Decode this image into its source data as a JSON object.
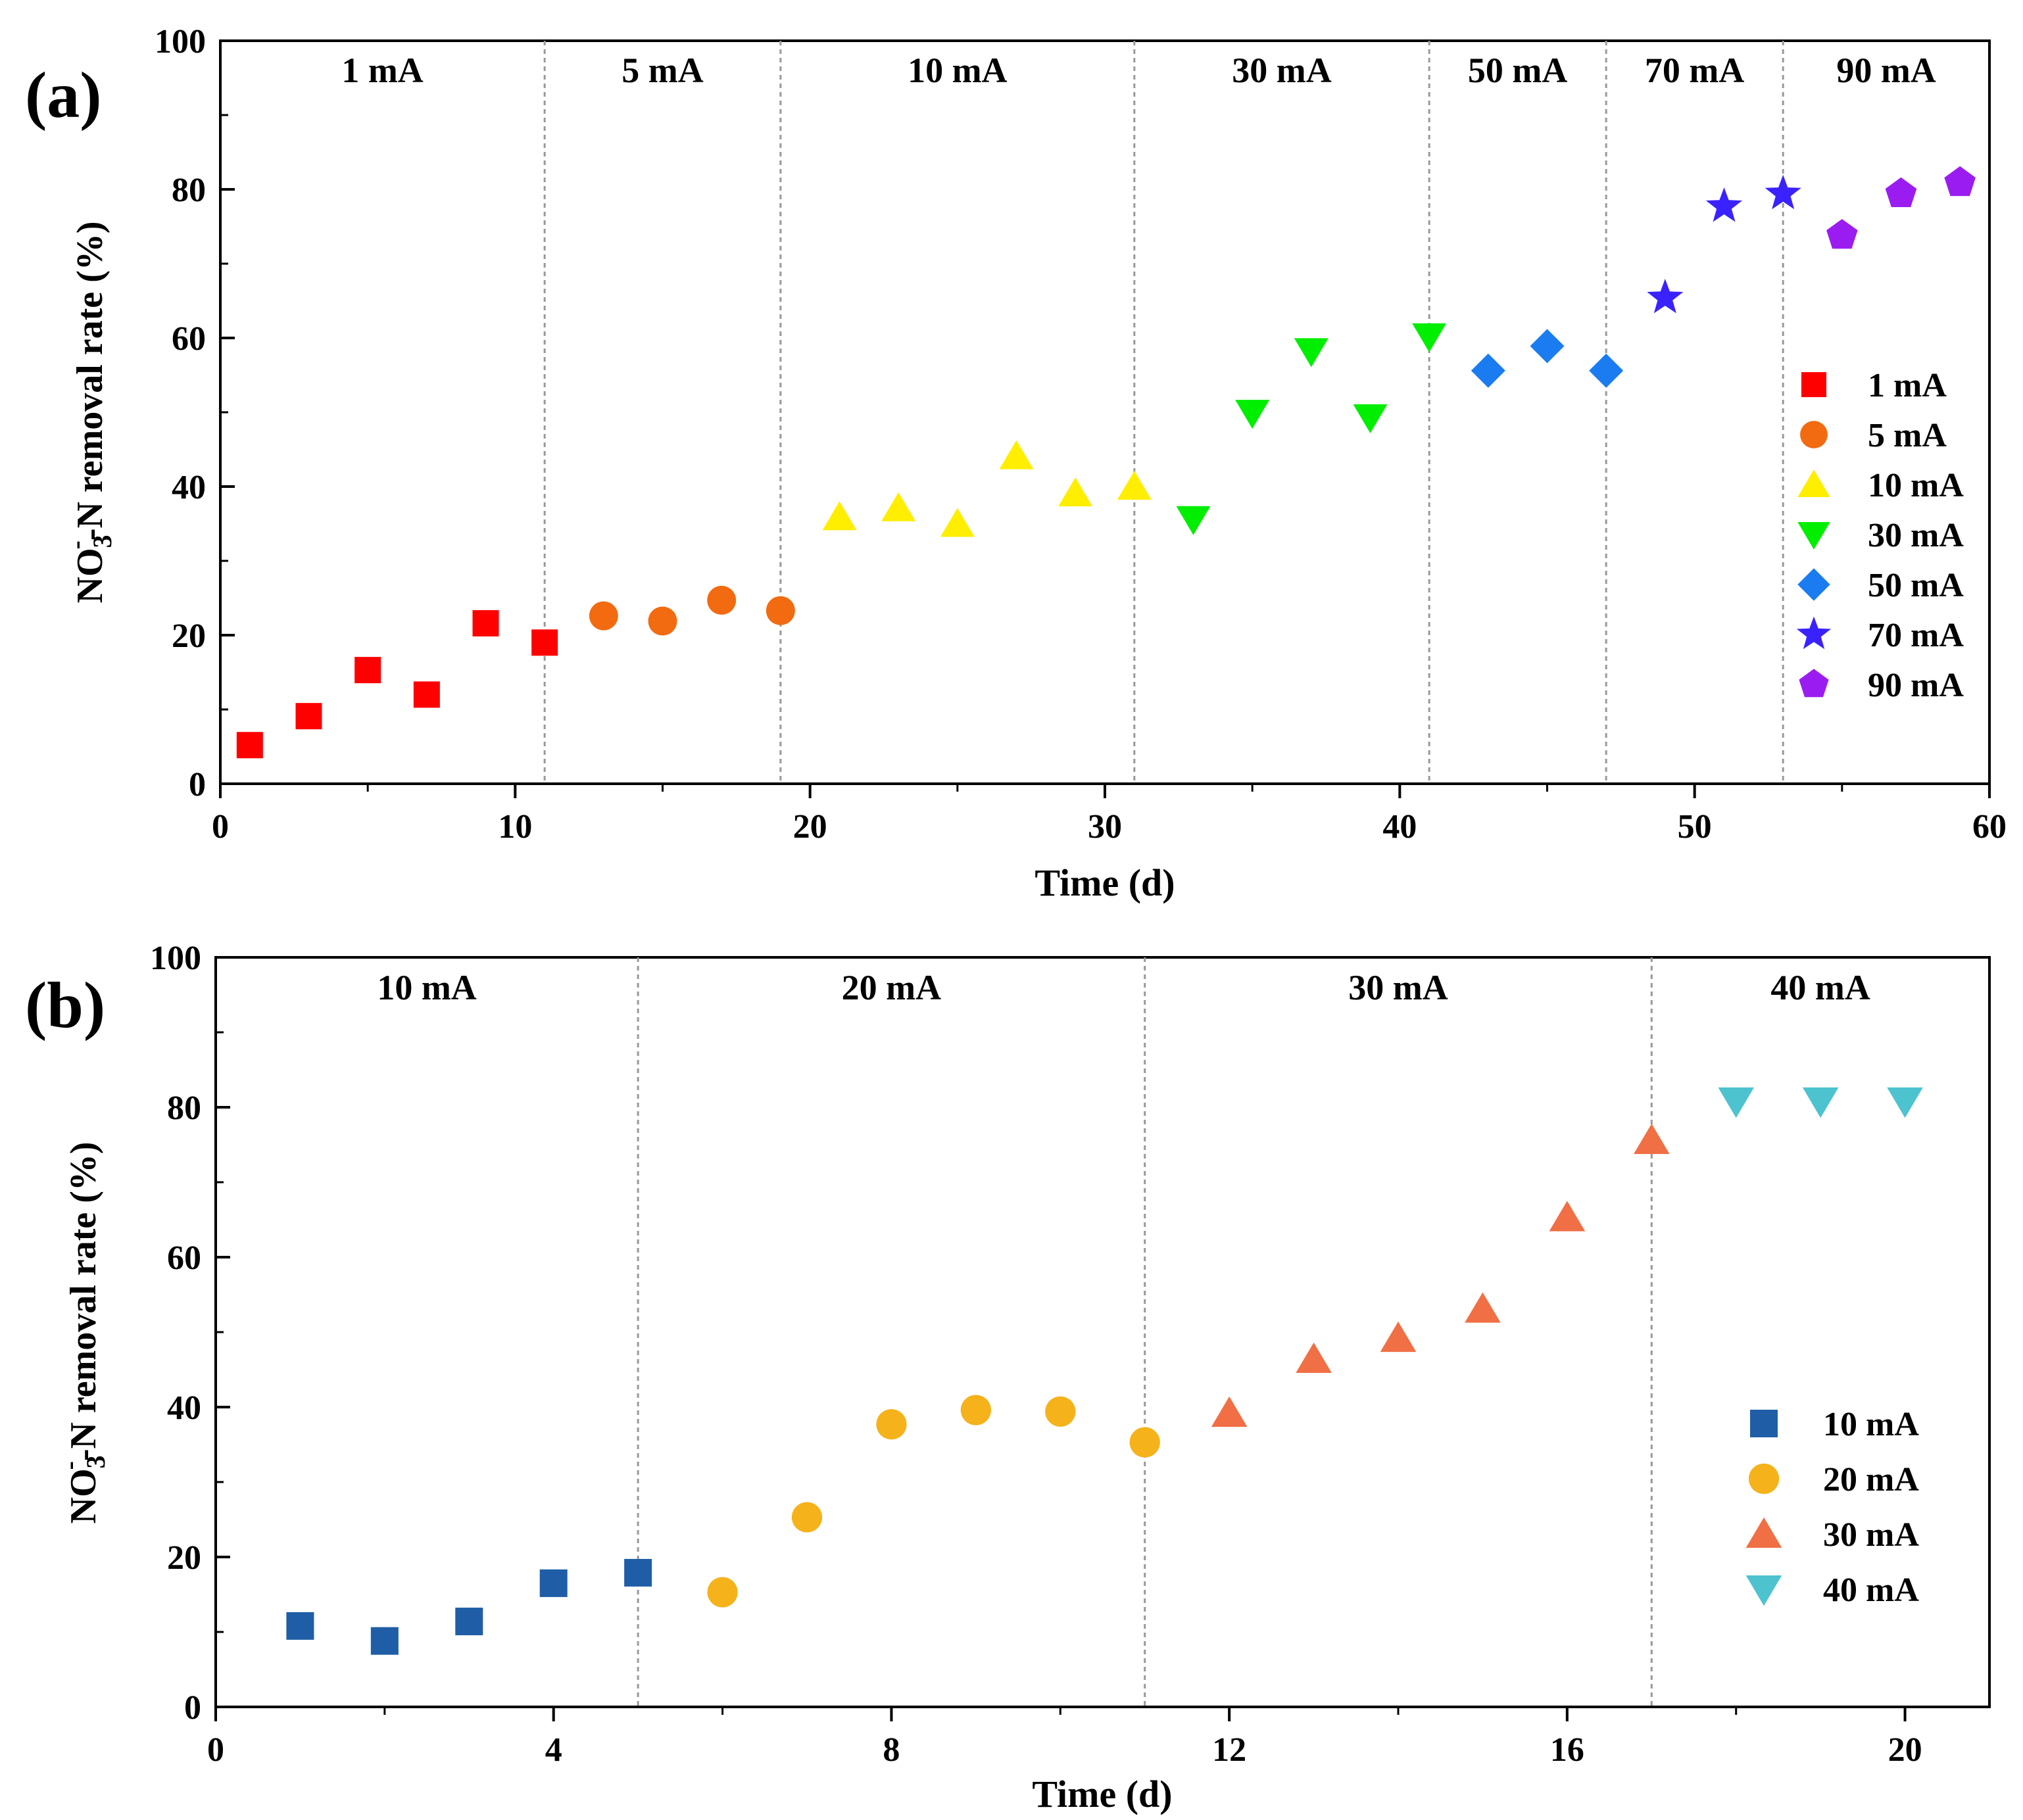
{
  "charts": [
    {
      "panel_label": "(a)",
      "ylabel_main": "NO",
      "ylabel_sub": "3",
      "ylabel_sup": "-",
      "ylabel_rest": "-N removal rate (%)"
    },
    {
      "panel_label": "(b)",
      "ylabel_main": "NO",
      "ylabel_sub": "3",
      "ylabel_sup": "-",
      "ylabel_rest": "-N removal rate (%)"
    }
  ],
  "chart_data": [
    {
      "type": "scatter",
      "title": "",
      "xlabel": "Time (d)",
      "ylabel": "NO3--N removal rate (%)",
      "xlim": [
        0,
        60
      ],
      "ylim": [
        0,
        100
      ],
      "xticks": [
        0,
        10,
        20,
        30,
        40,
        50,
        60
      ],
      "yticks": [
        0,
        20,
        40,
        60,
        80,
        100
      ],
      "grid": false,
      "legend_position": "right",
      "phase_boundaries": [
        11,
        19,
        31,
        41,
        47,
        53
      ],
      "phases": [
        {
          "label": "1 mA",
          "start": 0,
          "end": 11
        },
        {
          "label": "5 mA",
          "start": 11,
          "end": 19
        },
        {
          "label": "10 mA",
          "start": 19,
          "end": 31
        },
        {
          "label": "30 mA",
          "start": 31,
          "end": 41
        },
        {
          "label": "50 mA",
          "start": 41,
          "end": 47
        },
        {
          "label": "70 mA",
          "start": 47,
          "end": 53
        },
        {
          "label": "90 mA",
          "start": 53,
          "end": 60
        }
      ],
      "series": [
        {
          "name": "1 mA",
          "marker": "square",
          "color": "#ff0000",
          "x": [
            1,
            3,
            5,
            7,
            9,
            11
          ],
          "y": [
            5.2,
            9.1,
            15.3,
            12.0,
            21.6,
            19.0
          ]
        },
        {
          "name": "5 mA",
          "marker": "circle",
          "color": "#f26b10",
          "x": [
            13,
            15,
            17,
            19
          ],
          "y": [
            22.6,
            21.9,
            24.7,
            23.3
          ]
        },
        {
          "name": "10 mA",
          "marker": "triangle-up",
          "color": "#ffee00",
          "x": [
            21,
            23,
            25,
            27,
            29,
            31
          ],
          "y": [
            35.9,
            37.1,
            35.0,
            44.1,
            39.1,
            40.0
          ]
        },
        {
          "name": "30 mA",
          "marker": "triangle-down",
          "color": "#00ee00",
          "x": [
            33,
            35,
            37,
            39,
            41
          ],
          "y": [
            35.6,
            49.9,
            58.2,
            49.3,
            60.2
          ]
        },
        {
          "name": "50 mA",
          "marker": "diamond",
          "color": "#1a7cf0",
          "x": [
            43,
            45,
            47
          ],
          "y": [
            55.6,
            58.9,
            55.6
          ]
        },
        {
          "name": "70 mA",
          "marker": "star",
          "color": "#3a22ff",
          "x": [
            49,
            51,
            53
          ],
          "y": [
            65.4,
            77.7,
            79.4
          ]
        },
        {
          "name": "90 mA",
          "marker": "pentagon",
          "color": "#9b1cf0",
          "x": [
            55,
            57,
            59
          ],
          "y": [
            73.8,
            79.4,
            80.9
          ]
        }
      ]
    },
    {
      "type": "scatter",
      "title": "",
      "xlabel": "Time (d)",
      "ylabel": "NO3--N removal rate (%)",
      "xlim": [
        0,
        21
      ],
      "ylim": [
        0,
        100
      ],
      "xticks": [
        0,
        4,
        8,
        12,
        16,
        20
      ],
      "yticks": [
        0,
        20,
        40,
        60,
        80,
        100
      ],
      "grid": false,
      "legend_position": "bottom-right",
      "phase_boundaries": [
        5,
        11,
        17
      ],
      "phases": [
        {
          "label": "10 mA",
          "start": 0,
          "end": 5
        },
        {
          "label": "20 mA",
          "start": 5,
          "end": 11
        },
        {
          "label": "30 mA",
          "start": 11,
          "end": 17
        },
        {
          "label": "40 mA",
          "start": 17,
          "end": 21
        }
      ],
      "series": [
        {
          "name": "10 mA",
          "marker": "square",
          "color": "#1f5ea6",
          "x": [
            1,
            2,
            3,
            4,
            5
          ],
          "y": [
            10.8,
            8.8,
            11.4,
            16.5,
            17.9
          ]
        },
        {
          "name": "20 mA",
          "marker": "circle",
          "color": "#f5b21a",
          "x": [
            6,
            7,
            8,
            9,
            10,
            11
          ],
          "y": [
            15.3,
            25.3,
            37.7,
            39.6,
            39.4,
            35.3
          ]
        },
        {
          "name": "30 mA",
          "marker": "triangle-up",
          "color": "#f06f45",
          "x": [
            12,
            13,
            14,
            15,
            16,
            17
          ],
          "y": [
            39.2,
            46.4,
            49.2,
            53.1,
            65.3,
            75.6
          ]
        },
        {
          "name": "40 mA",
          "marker": "triangle-down",
          "color": "#4cc3cf",
          "x": [
            18,
            19,
            20
          ],
          "y": [
            80.8,
            80.8,
            80.8
          ]
        }
      ]
    }
  ]
}
